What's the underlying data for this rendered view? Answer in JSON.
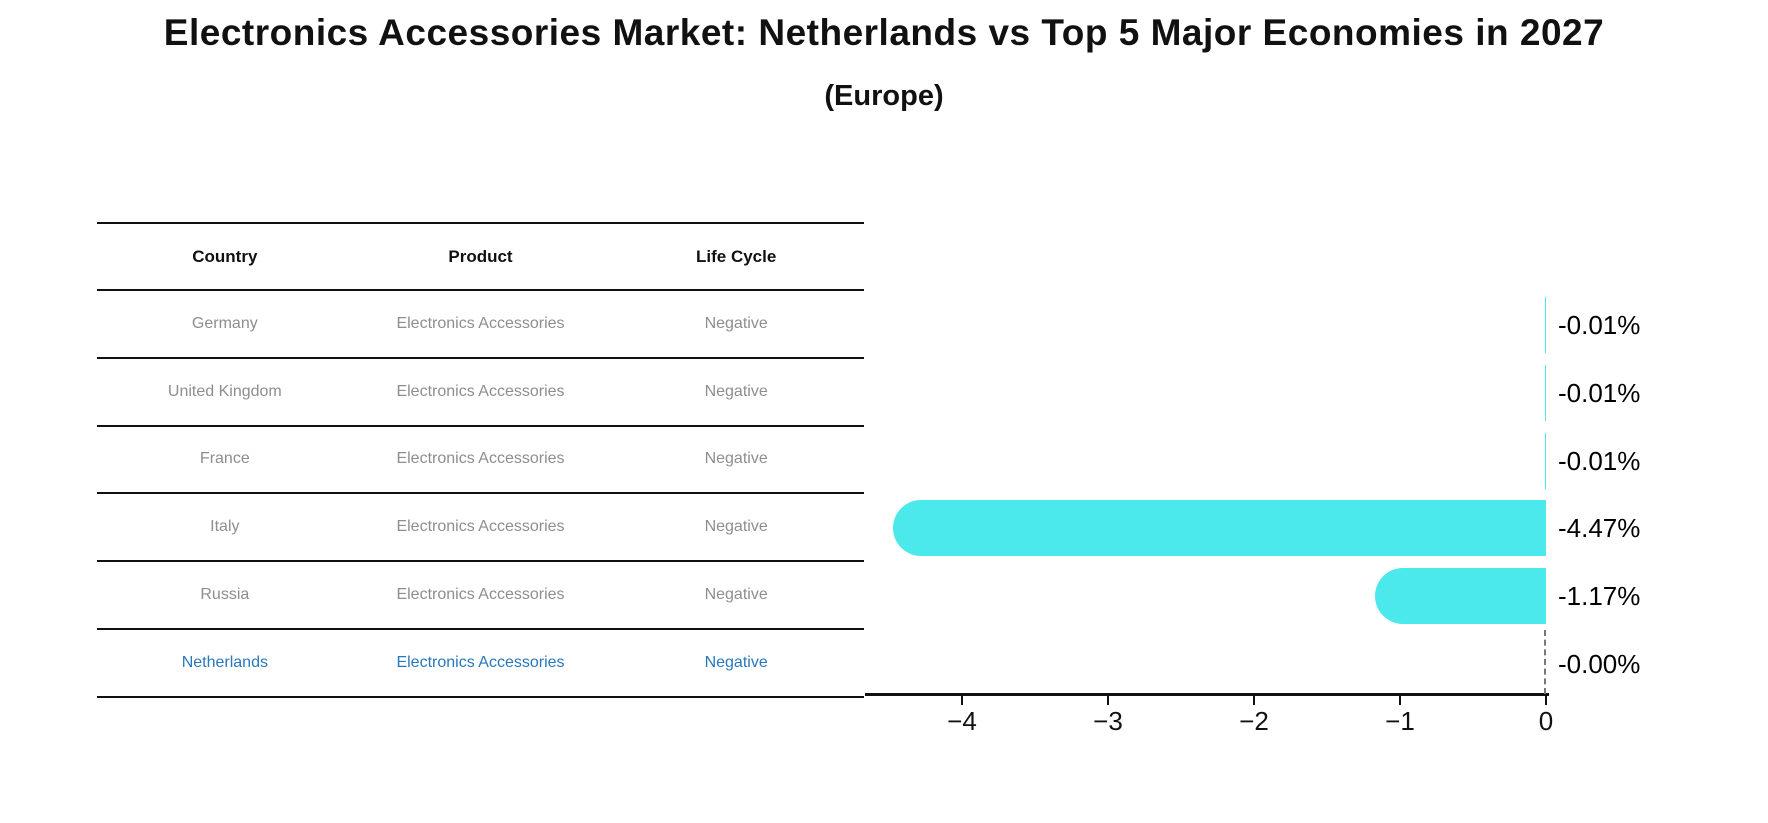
{
  "title": "Electronics Accessories Market: Netherlands vs Top 5 Major Economies in 2027",
  "subtitle": "(Europe)",
  "table": {
    "headers": [
      "Country",
      "Product",
      "Life Cycle"
    ],
    "rows": [
      {
        "country": "Germany",
        "product": "Electronics Accessories",
        "life_cycle": "Negative",
        "highlight": false
      },
      {
        "country": "United Kingdom",
        "product": "Electronics Accessories",
        "life_cycle": "Negative",
        "highlight": false
      },
      {
        "country": "France",
        "product": "Electronics Accessories",
        "life_cycle": "Negative",
        "highlight": false
      },
      {
        "country": "Italy",
        "product": "Electronics Accessories",
        "life_cycle": "Negative",
        "highlight": false
      },
      {
        "country": "Russia",
        "product": "Electronics Accessories",
        "life_cycle": "Negative",
        "highlight": false
      },
      {
        "country": "Netherlands",
        "product": "Electronics Accessories",
        "life_cycle": "Negative",
        "highlight": true
      }
    ]
  },
  "chart_data": {
    "type": "bar",
    "orientation": "horizontal",
    "categories": [
      "Germany",
      "United Kingdom",
      "France",
      "Italy",
      "Russia",
      "Netherlands"
    ],
    "values": [
      -0.01,
      -0.01,
      -0.01,
      -4.47,
      -1.17,
      0.0
    ],
    "value_labels": [
      "-0.01%",
      "-0.01%",
      "-0.01%",
      "-4.47%",
      "-1.17%",
      "-0.00%"
    ],
    "xticks": [
      -4,
      -3,
      -2,
      -1,
      0
    ],
    "xtick_labels": [
      "−4",
      "−3",
      "−2",
      "−1",
      "0"
    ],
    "xlim": [
      -4.66,
      0
    ],
    "grid": false,
    "legend": false,
    "title": "Electronics Accessories Market: Netherlands vs Top 5 Major Economies in 2027 (Europe)",
    "xlabel": "",
    "ylabel": ""
  },
  "colors": {
    "bar": "#4be8ec",
    "highlight_text": "#2878be",
    "cell_text": "#8e8e8e",
    "header_text": "#111111",
    "axis": "#111111"
  }
}
